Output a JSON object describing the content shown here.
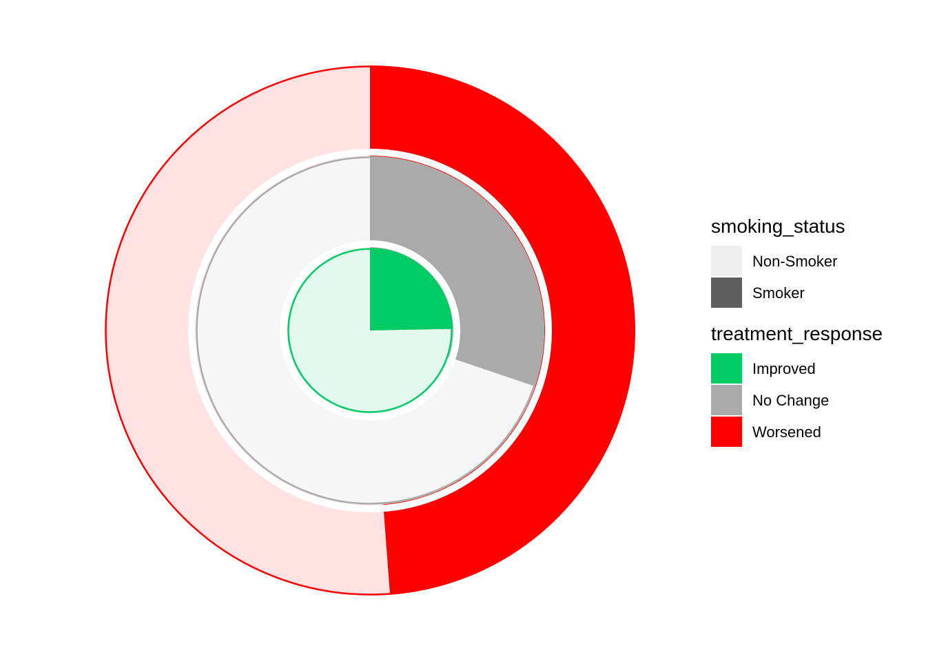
{
  "chart_data": {
    "type": "pie",
    "title": "",
    "rings": [
      {
        "name": "Improved",
        "color": "#00CC66",
        "segments": [
          {
            "smoking_status": "Smoker",
            "fraction": 0.247
          },
          {
            "smoking_status": "Non-Smoker",
            "fraction": 0.753
          }
        ]
      },
      {
        "name": "No Change",
        "color": "#AAAAAA",
        "segments": [
          {
            "smoking_status": "Smoker",
            "fraction": 0.302
          },
          {
            "smoking_status": "Non-Smoker",
            "fraction": 0.698
          }
        ]
      },
      {
        "name": "Worsened",
        "color": "#FF0000",
        "segments": [
          {
            "smoking_status": "Smoker",
            "fraction": 0.488
          },
          {
            "smoking_status": "Non-Smoker",
            "fraction": 0.512
          }
        ]
      }
    ],
    "legend": [
      {
        "title": "smoking_status",
        "entries": [
          {
            "label": "Non-Smoker",
            "color": "#EFEFEF"
          },
          {
            "label": "Smoker",
            "color": "#5E5E5E"
          }
        ]
      },
      {
        "title": "treatment_response",
        "entries": [
          {
            "label": "Improved",
            "color": "#00CC66"
          },
          {
            "label": "No Change",
            "color": "#AAAAAA"
          },
          {
            "label": "Worsened",
            "color": "#FF0000"
          }
        ]
      }
    ],
    "legend_position": "right"
  }
}
